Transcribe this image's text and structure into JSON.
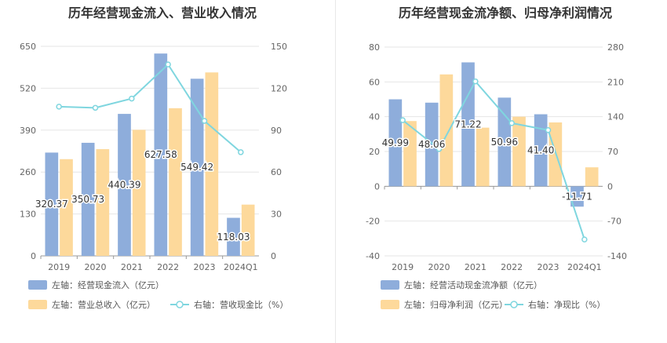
{
  "colors": {
    "bar_primary": "#8eaddb",
    "bar_secondary": "#fdd99b",
    "line": "#7fd6df",
    "grid": "#e6e6e6",
    "axis_text": "#666666",
    "title": "#333333"
  },
  "chart_data": [
    {
      "type": "bar",
      "title": "历年经营现金流入、营业收入情况",
      "categories": [
        "2019",
        "2020",
        "2021",
        "2022",
        "2023",
        "2024Q1"
      ],
      "left_axis": {
        "ticks": [
          "0",
          "130",
          "260",
          "390",
          "520",
          "650"
        ],
        "ylim": [
          0,
          650
        ]
      },
      "right_axis": {
        "ticks": [
          "0",
          "30",
          "60",
          "90",
          "120",
          "150"
        ],
        "ylim": [
          0,
          150
        ]
      },
      "series": [
        {
          "name": "左轴：经营现金流入（亿元）",
          "kind": "bar",
          "axis": "left",
          "values": [
            320.37,
            350.73,
            440.39,
            627.58,
            549.42,
            118.03
          ],
          "labels": [
            "320.37",
            "350.73",
            "440.39",
            "627.58",
            "549.42",
            "118.03"
          ]
        },
        {
          "name": "左轴：营业总收入（亿元）",
          "kind": "bar",
          "axis": "left",
          "values": [
            300,
            331,
            391,
            458,
            569,
            159
          ]
        },
        {
          "name": "右轴：营收现金比（%）",
          "kind": "line",
          "axis": "right",
          "values": [
            106.8,
            106.0,
            112.6,
            137.0,
            96.6,
            74.2
          ]
        }
      ],
      "legend": "bottom-left"
    },
    {
      "type": "bar",
      "title": "历年经营现金流净额、归母净利润情况",
      "categories": [
        "2019",
        "2020",
        "2021",
        "2022",
        "2023",
        "2024Q1"
      ],
      "left_axis": {
        "ticks": [
          "-40",
          "-20",
          "0",
          "20",
          "40",
          "60",
          "80"
        ],
        "ylim": [
          -40,
          80
        ]
      },
      "right_axis": {
        "ticks": [
          "-140",
          "-70",
          "0",
          "70",
          "140",
          "210",
          "280"
        ],
        "ylim": [
          -140,
          280
        ]
      },
      "series": [
        {
          "name": "左轴：经营活动现金流净额（亿元）",
          "kind": "bar",
          "axis": "left",
          "values": [
            49.99,
            48.06,
            71.22,
            50.96,
            41.4,
            -11.71
          ],
          "labels": [
            "49.99",
            "48.06",
            "71.22",
            "50.96",
            "41.40",
            "-11.71"
          ]
        },
        {
          "name": "左轴：归母净利润（亿元）",
          "kind": "bar",
          "axis": "left",
          "values": [
            37.5,
            64.3,
            33.7,
            40.0,
            36.7,
            10.9
          ]
        },
        {
          "name": "右轴：净现比（%）",
          "kind": "line",
          "axis": "right",
          "values": [
            133,
            75,
            211,
            127,
            113,
            -107
          ]
        }
      ],
      "legend": "bottom-left"
    }
  ]
}
